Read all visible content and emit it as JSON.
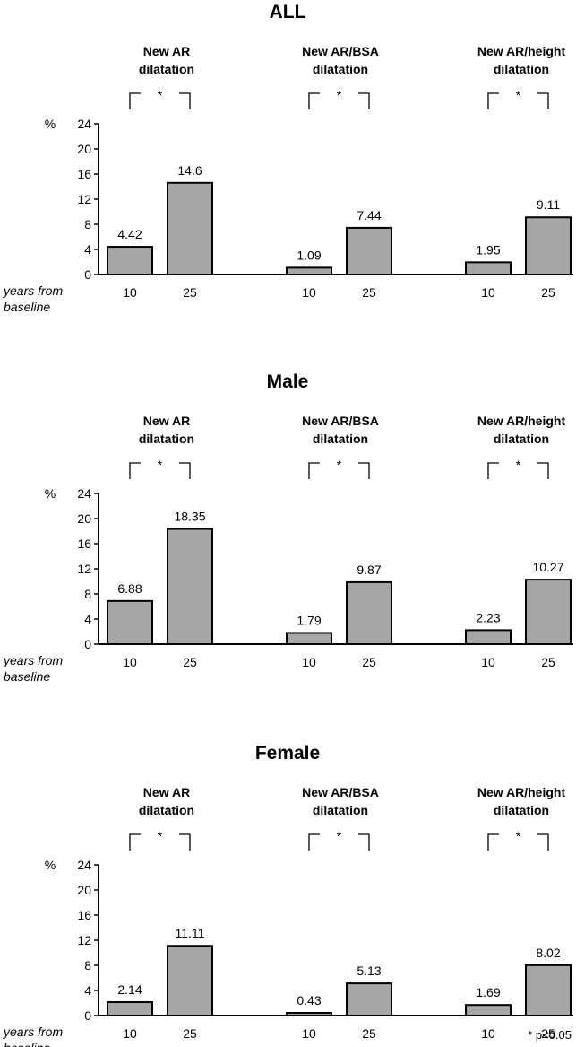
{
  "chart_data": [
    {
      "type": "bar",
      "title": "ALL",
      "ylabel": "%",
      "xlabel": "years from baseline",
      "ylim": [
        0,
        24
      ],
      "yticks": [
        0,
        4,
        8,
        12,
        16,
        20,
        24
      ],
      "categories": [
        "10",
        "25"
      ],
      "groups": [
        {
          "name": "New AR dilatation",
          "title_lines": [
            "New AR",
            "dilatation"
          ],
          "values": [
            4.42,
            14.6
          ],
          "labels": [
            "4.42",
            "14.6"
          ],
          "significance": "*"
        },
        {
          "name": "New AR/BSA dilatation",
          "title_lines": [
            "New AR/BSA",
            "dilatation"
          ],
          "values": [
            1.09,
            7.44
          ],
          "labels": [
            "1.09",
            "7.44"
          ],
          "significance": "*"
        },
        {
          "name": "New AR/height dilatation",
          "title_lines": [
            "New AR/height",
            "dilatation"
          ],
          "values": [
            1.95,
            9.11
          ],
          "labels": [
            "1.95",
            "9.11"
          ],
          "significance": "*"
        }
      ]
    },
    {
      "type": "bar",
      "title": "Male",
      "ylabel": "%",
      "xlabel": "years from baseline",
      "ylim": [
        0,
        24
      ],
      "yticks": [
        0,
        4,
        8,
        12,
        16,
        20,
        24
      ],
      "categories": [
        "10",
        "25"
      ],
      "groups": [
        {
          "name": "New AR dilatation",
          "title_lines": [
            "New AR",
            "dilatation"
          ],
          "values": [
            6.88,
            18.35
          ],
          "labels": [
            "6.88",
            "18.35"
          ],
          "significance": "*"
        },
        {
          "name": "New AR/BSA dilatation",
          "title_lines": [
            "New AR/BSA",
            "dilatation"
          ],
          "values": [
            1.79,
            9.87
          ],
          "labels": [
            "1.79",
            "9.87"
          ],
          "significance": "*"
        },
        {
          "name": "New AR/height dilatation",
          "title_lines": [
            "New AR/height",
            "dilatation"
          ],
          "values": [
            2.23,
            10.27
          ],
          "labels": [
            "2.23",
            "10.27"
          ],
          "significance": "*"
        }
      ]
    },
    {
      "type": "bar",
      "title": "Female",
      "ylabel": "%",
      "xlabel": "years from baseline",
      "ylim": [
        0,
        24
      ],
      "yticks": [
        0,
        4,
        8,
        12,
        16,
        20,
        24
      ],
      "categories": [
        "10",
        "25"
      ],
      "groups": [
        {
          "name": "New AR dilatation",
          "title_lines": [
            "New AR",
            "dilatation"
          ],
          "values": [
            2.14,
            11.11
          ],
          "labels": [
            "2.14",
            "11.11"
          ],
          "significance": "*"
        },
        {
          "name": "New AR/BSA dilatation",
          "title_lines": [
            "New AR/BSA",
            "dilatation"
          ],
          "values": [
            0.43,
            5.13
          ],
          "labels": [
            "0.43",
            "5.13"
          ],
          "significance": "*"
        },
        {
          "name": "New AR/height dilatation",
          "title_lines": [
            "New AR/height",
            "dilatation"
          ],
          "values": [
            1.69,
            8.02
          ],
          "labels": [
            "1.69",
            "8.02"
          ],
          "significance": "*"
        }
      ]
    }
  ],
  "footnote": "* p<0.05"
}
